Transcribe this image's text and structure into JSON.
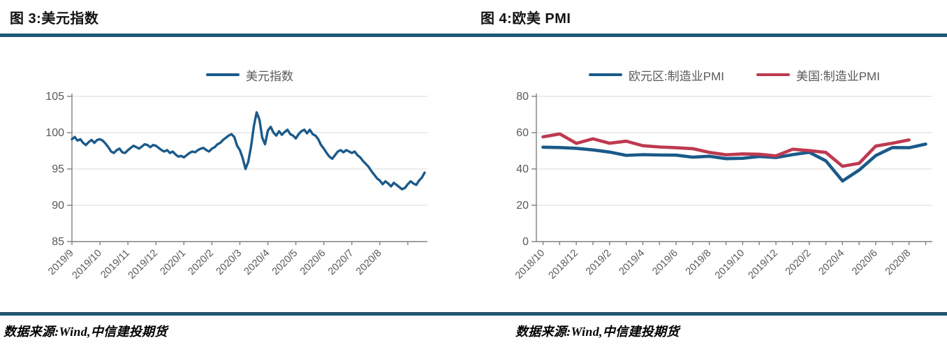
{
  "panels": [
    {
      "title": "图 3:美元指数",
      "source": "数据来源:Wind,中信建投期货"
    },
    {
      "title": "图 4:欧美 PMI",
      "source": "数据来源:Wind,中信建投期货"
    }
  ],
  "colors": {
    "divider_rule": "#1e5876",
    "blue_line": "#1b5a8a",
    "red_line": "#be3950",
    "grid": "#d9d9d9",
    "axis": "#808080",
    "tick_label": "#595959"
  },
  "chart_data": [
    {
      "type": "line",
      "title": "图 3:美元指数",
      "xlabel": "",
      "ylabel": "",
      "grid": true,
      "legend_position": "top",
      "ylim": [
        85,
        105
      ],
      "yticks": [
        85,
        90,
        95,
        100,
        105
      ],
      "x_domain": [
        0,
        12.7
      ],
      "x_minor_ticks": [
        0,
        1,
        2,
        3,
        4,
        5,
        6,
        7,
        8,
        9,
        10,
        11,
        12
      ],
      "x_labels": [
        {
          "pos": 0,
          "label": "2019/9"
        },
        {
          "pos": 1,
          "label": "2019/10"
        },
        {
          "pos": 2,
          "label": "2019/11"
        },
        {
          "pos": 3,
          "label": "2019/12"
        },
        {
          "pos": 4,
          "label": "2020/1"
        },
        {
          "pos": 5,
          "label": "2020/2"
        },
        {
          "pos": 6,
          "label": "2020/3"
        },
        {
          "pos": 7,
          "label": "2020/4"
        },
        {
          "pos": 8,
          "label": "2020/5"
        },
        {
          "pos": 9,
          "label": "2020/6"
        },
        {
          "pos": 10,
          "label": "2020/7"
        },
        {
          "pos": 11,
          "label": "2020/8"
        }
      ],
      "legend": [
        {
          "label": "美元指数",
          "color": "#1b5a8a"
        }
      ],
      "series": [
        {
          "name": "美元指数",
          "color": "#1b5a8a",
          "width": 3.4,
          "x_start": 0,
          "x_step": 0.1,
          "values": [
            99.1,
            99.4,
            98.9,
            99.1,
            98.6,
            98.3,
            98.7,
            99.0,
            98.6,
            99.0,
            99.1,
            98.9,
            98.5,
            98.0,
            97.4,
            97.2,
            97.6,
            97.8,
            97.3,
            97.2,
            97.6,
            97.9,
            98.2,
            98.0,
            97.8,
            98.1,
            98.4,
            98.3,
            98.0,
            98.3,
            98.2,
            97.9,
            97.6,
            97.4,
            97.6,
            97.2,
            97.4,
            97.0,
            96.7,
            96.8,
            96.6,
            96.9,
            97.2,
            97.4,
            97.3,
            97.6,
            97.8,
            97.9,
            97.6,
            97.4,
            97.8,
            98.0,
            98.4,
            98.6,
            99.0,
            99.3,
            99.6,
            99.8,
            99.4,
            98.2,
            97.6,
            96.5,
            95.0,
            96.0,
            98.1,
            100.9,
            102.8,
            101.8,
            99.3,
            98.4,
            100.3,
            100.8,
            100.0,
            99.6,
            100.2,
            99.7,
            100.1,
            100.4,
            99.8,
            99.6,
            99.2,
            99.8,
            100.2,
            100.4,
            99.9,
            100.4,
            99.8,
            99.6,
            99.1,
            98.3,
            97.8,
            97.2,
            96.7,
            96.4,
            96.9,
            97.4,
            97.6,
            97.3,
            97.6,
            97.4,
            97.2,
            97.4,
            96.9,
            96.6,
            96.1,
            95.7,
            95.3,
            94.7,
            94.2,
            93.7,
            93.4,
            92.9,
            93.3,
            93.0,
            92.6,
            93.1,
            92.8,
            92.5,
            92.2,
            92.4,
            92.9,
            93.3,
            93.0,
            92.8,
            93.4,
            93.8,
            94.5
          ]
        }
      ]
    },
    {
      "type": "line",
      "title": "图 4:欧美 PMI",
      "xlabel": "",
      "ylabel": "",
      "grid": true,
      "legend_position": "top",
      "ylim": [
        0,
        80
      ],
      "yticks": [
        0,
        20,
        40,
        60,
        80
      ],
      "x_domain": [
        -0.4,
        23.4
      ],
      "x_minor_ticks": [
        0,
        1,
        2,
        3,
        4,
        5,
        6,
        7,
        8,
        9,
        10,
        11,
        12,
        13,
        14,
        15,
        16,
        17,
        18,
        19,
        20,
        21,
        22,
        23
      ],
      "x_labels": [
        {
          "pos": 0,
          "label": "2018/10"
        },
        {
          "pos": 2,
          "label": "2018/12"
        },
        {
          "pos": 4,
          "label": "2019/2"
        },
        {
          "pos": 6,
          "label": "2019/4"
        },
        {
          "pos": 8,
          "label": "2019/6"
        },
        {
          "pos": 10,
          "label": "2019/8"
        },
        {
          "pos": 12,
          "label": "2019/10"
        },
        {
          "pos": 14,
          "label": "2019/12"
        },
        {
          "pos": 16,
          "label": "2020/2"
        },
        {
          "pos": 18,
          "label": "2020/4"
        },
        {
          "pos": 20,
          "label": "2020/6"
        },
        {
          "pos": 22,
          "label": "2020/8"
        }
      ],
      "legend": [
        {
          "label": "欧元区:制造业PMI",
          "color": "#1b5a8a"
        },
        {
          "label": "美国:制造业PMI",
          "color": "#be3950"
        }
      ],
      "series": [
        {
          "name": "欧元区:制造业PMI",
          "color": "#1b5a8a",
          "width": 4.6,
          "x_start": 0,
          "x_step": 1,
          "values": [
            52.0,
            51.8,
            51.4,
            50.5,
            49.3,
            47.5,
            47.9,
            47.7,
            47.6,
            46.5,
            47.0,
            45.7,
            45.9,
            46.9,
            46.3,
            47.9,
            49.2,
            44.5,
            33.4,
            39.4,
            47.4,
            51.8,
            51.7,
            53.7
          ]
        },
        {
          "name": "美国:制造业PMI",
          "color": "#be3950",
          "width": 4.6,
          "x_start": 0,
          "x_step": 1,
          "values": [
            57.7,
            59.3,
            54.1,
            56.6,
            54.2,
            55.3,
            52.8,
            52.1,
            51.7,
            51.2,
            49.1,
            47.8,
            48.3,
            48.1,
            47.2,
            50.9,
            50.1,
            49.1,
            41.5,
            43.1,
            52.6,
            54.2,
            56.0
          ]
        }
      ]
    }
  ]
}
